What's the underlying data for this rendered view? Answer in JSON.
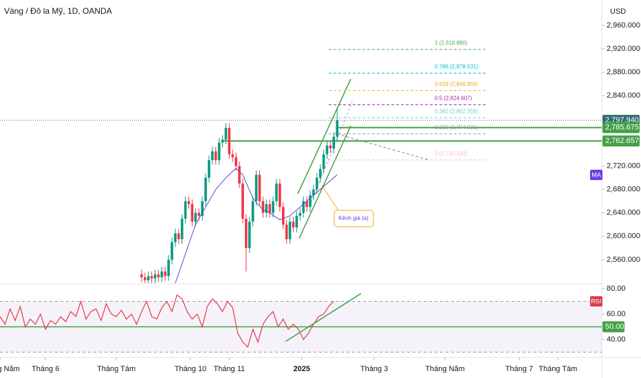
{
  "chart_data": {
    "type": "candlestick",
    "title": "Vàng / Đô la Mỹ, 1D, OANDA",
    "currency": "USD",
    "colors": {
      "up": "#089981",
      "down": "#f23645"
    },
    "xlim": [
      0,
      357
    ],
    "xticks": [
      {
        "value": 0,
        "label": "Tháng Năm"
      },
      {
        "value": 27,
        "label": "Tháng 6"
      },
      {
        "value": 69,
        "label": "Tháng Tám"
      },
      {
        "value": 113,
        "label": "Tháng 10"
      },
      {
        "value": 136,
        "label": "Tháng 11"
      },
      {
        "value": 179,
        "label": "2025"
      },
      {
        "value": 222,
        "label": "Tháng 3"
      },
      {
        "value": 264,
        "label": "Tháng Năm"
      },
      {
        "value": 308,
        "label": "Tháng 7"
      },
      {
        "value": 331,
        "label": "Tháng Tám"
      }
    ],
    "ylim": [
      2520,
      3003.4
    ],
    "yticks": [
      {
        "value": 2960,
        "label": "2,960.000"
      },
      {
        "value": 2920,
        "label": "2,920.000"
      },
      {
        "value": 2880,
        "label": "2,880.000"
      },
      {
        "value": 2840,
        "label": "2,840.000"
      },
      {
        "value": 2720,
        "label": "2,720.000"
      },
      {
        "value": 2680,
        "label": "2,680.000"
      },
      {
        "value": 2640,
        "label": "2,640.000"
      },
      {
        "value": 2600,
        "label": "2,600.000"
      },
      {
        "value": 2560,
        "label": "2,560.000"
      }
    ],
    "x": [
      84,
      86,
      88,
      90,
      92,
      94,
      96,
      98,
      100,
      102,
      104,
      106,
      108,
      110,
      112,
      114,
      116,
      118,
      120,
      122,
      124,
      126,
      128,
      130,
      132,
      134,
      136,
      138,
      140,
      142,
      144,
      146,
      148,
      150,
      152,
      154,
      156,
      158,
      160,
      162,
      164,
      166,
      168,
      170,
      172,
      174,
      176,
      178,
      180,
      182,
      184,
      186,
      188,
      190,
      192,
      194,
      196,
      198,
      200
    ],
    "open": [
      2535,
      2530,
      2525,
      2532,
      2528,
      2535,
      2530,
      2540,
      2532,
      2560,
      2590,
      2605,
      2595,
      2630,
      2660,
      2655,
      2625,
      2640,
      2635,
      2660,
      2700,
      2730,
      2745,
      2730,
      2760,
      2765,
      2785,
      2740,
      2735,
      2720,
      2690,
      2630,
      2580,
      2625,
      2660,
      2705,
      2660,
      2640,
      2655,
      2640,
      2660,
      2690,
      2650,
      2620,
      2595,
      2625,
      2615,
      2635,
      2640,
      2660,
      2650,
      2670,
      2680,
      2700,
      2715,
      2740,
      2755,
      2750,
      2770
    ],
    "high": [
      2543,
      2538,
      2540,
      2540,
      2543,
      2543,
      2548,
      2548,
      2568,
      2598,
      2613,
      2613,
      2638,
      2668,
      2668,
      2663,
      2648,
      2648,
      2668,
      2708,
      2738,
      2753,
      2753,
      2768,
      2773,
      2793,
      2793,
      2748,
      2743,
      2728,
      2698,
      2638,
      2633,
      2668,
      2713,
      2713,
      2668,
      2663,
      2663,
      2668,
      2698,
      2698,
      2658,
      2628,
      2633,
      2633,
      2643,
      2648,
      2668,
      2668,
      2678,
      2688,
      2708,
      2723,
      2748,
      2763,
      2763,
      2778,
      2820
    ],
    "low": [
      2522,
      2517,
      2517,
      2520,
      2520,
      2522,
      2522,
      2524,
      2524,
      2552,
      2582,
      2587,
      2587,
      2622,
      2647,
      2617,
      2617,
      2627,
      2627,
      2652,
      2692,
      2722,
      2722,
      2722,
      2752,
      2757,
      2732,
      2727,
      2712,
      2682,
      2622,
      2540,
      2572,
      2617,
      2652,
      2652,
      2632,
      2632,
      2632,
      2632,
      2652,
      2642,
      2612,
      2587,
      2587,
      2607,
      2607,
      2627,
      2632,
      2642,
      2642,
      2662,
      2672,
      2692,
      2707,
      2732,
      2742,
      2742,
      2762
    ],
    "close": [
      2530,
      2525,
      2532,
      2528,
      2535,
      2530,
      2540,
      2532,
      2560,
      2590,
      2605,
      2595,
      2630,
      2660,
      2655,
      2625,
      2640,
      2635,
      2660,
      2700,
      2730,
      2745,
      2730,
      2760,
      2765,
      2785,
      2740,
      2735,
      2720,
      2690,
      2630,
      2580,
      2625,
      2660,
      2705,
      2660,
      2640,
      2655,
      2640,
      2660,
      2690,
      2650,
      2620,
      2595,
      2625,
      2615,
      2635,
      2640,
      2660,
      2650,
      2670,
      2680,
      2700,
      2715,
      2740,
      2755,
      2750,
      2770,
      2797.94
    ],
    "ma": {
      "name": "MA",
      "color": "#5b45d6",
      "x": [
        104,
        110,
        116,
        122,
        128,
        134,
        140,
        144,
        150,
        156,
        160,
        166,
        172,
        178,
        184,
        190,
        200
      ],
      "values": [
        2520,
        2570,
        2620,
        2650,
        2680,
        2700,
        2716,
        2705,
        2665,
        2645,
        2640,
        2628,
        2635,
        2650,
        2665,
        2680,
        2705
      ]
    },
    "price_labels": [
      {
        "value": 2797.94,
        "label": "2,797.940",
        "color": "#2f6f73"
      },
      {
        "value": 2785.675,
        "label": "2,785.675",
        "color": "#43a047"
      },
      {
        "value": 2762.657,
        "label": "2,762.657",
        "color": "#43a047"
      }
    ],
    "fib": [
      {
        "value": 2918.88,
        "label": "1 (2,918.880)",
        "color": "#4caf50"
      },
      {
        "value": 2878.531,
        "label": "0.786 (2,878.531)",
        "color": "#00bcd4"
      },
      {
        "value": 2848.856,
        "label": "0.618 (2,848.856)",
        "color": "#f5a623"
      },
      {
        "value": 2824.607,
        "label": "0.5 (2,824.607)",
        "color": "#9c27b0"
      },
      {
        "value": 2802.359,
        "label": "0.382 (2,802.359)",
        "color": "#7fcfc4"
      },
      {
        "value": 2774.831,
        "label": "0.236 (2,774.831)",
        "color": "#9e9e9e"
      },
      {
        "value": 2730.334,
        "label": "0 (2,730.334)",
        "color": "#f8bbd0"
      }
    ],
    "annotation": "Kênh giá (a)",
    "rsi": {
      "name": "RSI",
      "color": "#e53945",
      "ylim": [
        25.9,
        82.7
      ],
      "yticks": [
        {
          "value": 80,
          "label": "80.00"
        },
        {
          "value": 60,
          "label": "60.00"
        },
        {
          "value": 40,
          "label": "40.00"
        }
      ],
      "bands": [
        70,
        30
      ],
      "level": {
        "value": 50,
        "label": "50.00"
      },
      "x": [
        0,
        3,
        6,
        9,
        12,
        15,
        18,
        21,
        24,
        27,
        30,
        33,
        36,
        39,
        42,
        45,
        48,
        51,
        54,
        57,
        60,
        63,
        66,
        69,
        72,
        75,
        78,
        81,
        84,
        87,
        90,
        93,
        96,
        99,
        102,
        105,
        108,
        111,
        114,
        117,
        120,
        123,
        126,
        129,
        132,
        135,
        138,
        141,
        144,
        147,
        150,
        153,
        156,
        159,
        162,
        165,
        168,
        171,
        174,
        177,
        180,
        183,
        186,
        189,
        192,
        195,
        198
      ],
      "values": [
        58,
        52,
        64,
        55,
        66,
        50,
        56,
        52,
        60,
        48,
        55,
        52,
        58,
        54,
        62,
        58,
        70,
        56,
        62,
        64,
        55,
        68,
        60,
        58,
        63,
        56,
        60,
        52,
        62,
        70,
        58,
        56,
        65,
        70,
        62,
        75,
        72,
        62,
        56,
        60,
        50,
        66,
        72,
        68,
        62,
        70,
        65,
        45,
        38,
        34,
        48,
        38,
        52,
        58,
        62,
        50,
        56,
        48,
        52,
        48,
        40,
        45,
        52,
        58,
        60,
        66,
        70
      ]
    }
  }
}
